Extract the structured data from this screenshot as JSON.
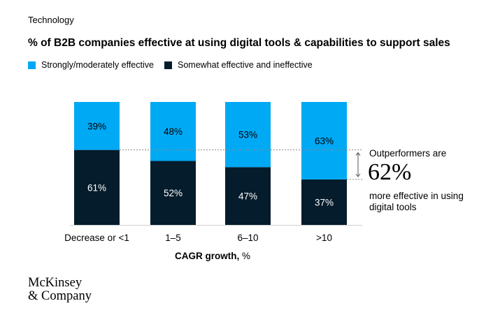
{
  "section_label": "Technology",
  "logo_text": "McKinsey\n& Company",
  "colors": {
    "strong": "#00a9f4",
    "somewhat": "#051c2c",
    "baseline": "#d0d0d0"
  },
  "chart_data": {
    "type": "bar",
    "stacked": true,
    "title": "% of B2B companies effective at using digital tools & capabilities to support sales",
    "xlabel_bold": "CAGR growth,",
    "xlabel_unit": " %",
    "categories": [
      "Decrease or <1",
      "1–5",
      "6–10",
      ">10"
    ],
    "series": [
      {
        "name": "Strongly/moderately effective",
        "values": [
          39,
          48,
          53,
          63
        ],
        "labels": [
          "39%",
          "48%",
          "53%",
          "63%"
        ]
      },
      {
        "name": "Somewhat effective and ineffective",
        "values": [
          61,
          52,
          47,
          37
        ],
        "labels": [
          "61%",
          "52%",
          "47%",
          "37%"
        ]
      }
    ],
    "ylim": [
      0,
      100
    ],
    "legend_position": "top-left",
    "annotation": {
      "line1": "Outperformers are",
      "value": "62%",
      "line2": "more effective in using",
      "line3": "digital tools"
    }
  }
}
